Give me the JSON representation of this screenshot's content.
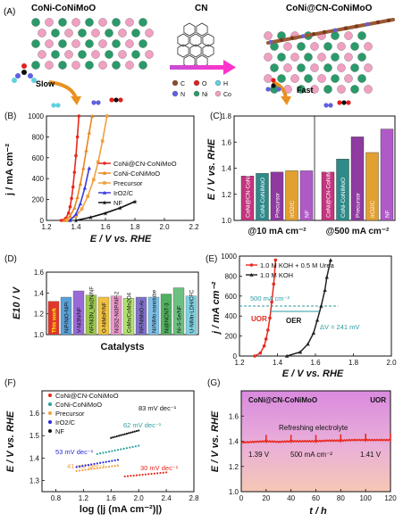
{
  "panel_a": {
    "label": "(A)",
    "left_title": "CoNi-CoNiMoO",
    "mid_title": "CN",
    "right_title": "CoNi@CN-CoNiMoO",
    "slow": "Slow",
    "fast": "Fast",
    "legend": [
      {
        "sym": "C",
        "color": "#8b4a2b"
      },
      {
        "sym": "O",
        "color": "#e02020"
      },
      {
        "sym": "H",
        "color": "#5fd0e0"
      },
      {
        "sym": "N",
        "color": "#6060e0"
      },
      {
        "sym": "Ni",
        "color": "#2a9a6a"
      },
      {
        "sym": "Co",
        "color": "#f0a0c0"
      }
    ]
  },
  "chart_data": [
    {
      "panel": "(B)",
      "type": "line",
      "xlabel": "E / V vs. RHE",
      "ylabel": "j / mA cm⁻²",
      "xlim": [
        1.2,
        2.2
      ],
      "ylim": [
        0,
        1000
      ],
      "xticks": [
        "1.2",
        "1.4",
        "1.6",
        "1.8",
        "2.0",
        "2.2"
      ],
      "yticks": [
        "0",
        "200",
        "400",
        "600",
        "800",
        "1000"
      ],
      "legend_position": "right",
      "series": [
        {
          "name": "CoNi@CN-CoNiMoO",
          "color": "#e8281e",
          "marker": "circle",
          "x": [
            1.3,
            1.33,
            1.35,
            1.36,
            1.37,
            1.38,
            1.39,
            1.4,
            1.41,
            1.42
          ],
          "y": [
            0,
            20,
            70,
            130,
            210,
            320,
            460,
            620,
            800,
            1000
          ]
        },
        {
          "name": "CoNi-CoNiMoO",
          "color": "#e8861e",
          "marker": "triangle",
          "x": [
            1.32,
            1.36,
            1.39,
            1.41,
            1.43,
            1.45,
            1.47,
            1.49,
            1.51
          ],
          "y": [
            0,
            40,
            120,
            220,
            350,
            500,
            670,
            840,
            1000
          ]
        },
        {
          "name": "Precursor",
          "color": "#f0a040",
          "marker": "square",
          "x": [
            1.34,
            1.4,
            1.44,
            1.48,
            1.52,
            1.55,
            1.58,
            1.61
          ],
          "y": [
            0,
            40,
            110,
            230,
            390,
            560,
            760,
            1000
          ]
        },
        {
          "name": "IrO2/C",
          "color": "#3a3adf",
          "marker": "triangle",
          "x": [
            1.36,
            1.4,
            1.43,
            1.46,
            1.49
          ],
          "y": [
            0,
            60,
            160,
            310,
            500
          ]
        },
        {
          "name": "NF",
          "color": "#111111",
          "marker": "star",
          "x": [
            1.4,
            1.5,
            1.6,
            1.7,
            1.8
          ],
          "y": [
            0,
            30,
            70,
            120,
            180
          ]
        }
      ]
    },
    {
      "panel": "(C)",
      "type": "bar",
      "xlabel": "",
      "ylabel": "E / V vs. RHE",
      "ylim": [
        1.0,
        1.8
      ],
      "yticks": [
        "1.0",
        "1.2",
        "1.4",
        "1.6",
        "1.8"
      ],
      "groups": [
        "@10 mA cm⁻²",
        "@500 mA cm⁻²"
      ],
      "categories": [
        "CoNi@CN-CoNiMoO",
        "CoNi-CoNiMoO",
        "Precursor",
        "IrO2/C",
        "NF"
      ],
      "colors": [
        "#c4357e",
        "#2f8a8a",
        "#8e3aa0",
        "#e2a030",
        "#b05ac8"
      ],
      "series": [
        {
          "name": "@10 mA cm⁻²",
          "values": [
            1.34,
            1.36,
            1.37,
            1.38,
            1.38
          ]
        },
        {
          "name": "@500 mA cm⁻²",
          "values": [
            1.37,
            1.47,
            1.64,
            1.52,
            1.7
          ]
        }
      ]
    },
    {
      "panel": "(D)",
      "type": "bar",
      "xlabel": "Catalysts",
      "ylabel": "E10 / V",
      "ylim": [
        1.0,
        1.6
      ],
      "yticks": [
        "1.0",
        "1.2",
        "1.4",
        "1.6"
      ],
      "categories": [
        "This work",
        "NiP/NiO-NiPi",
        "V-Ni3N/NF",
        "NF/Ni3N_Mo2N/NF",
        "O-NiMoP/NF",
        "Ni3S2-Ni3P/NF-2",
        "CoMn/CoMn2O4",
        "NF/NiMoO-Ar",
        "Ni/NiMo nanotube",
        "Ni@NCNT-3",
        "Ni-S-Se/NF",
        "U-NiMn-LDH/CFC"
      ],
      "values": [
        1.32,
        1.36,
        1.42,
        1.38,
        1.36,
        1.37,
        1.35,
        1.36,
        1.36,
        1.39,
        1.45,
        1.37
      ],
      "colors": [
        "#e0362c",
        "#5aa0d8",
        "#9a6ad8",
        "#9cc850",
        "#f0c040",
        "#e898c8",
        "#b0e070",
        "#8070c8",
        "#7ec0e8",
        "#50b060",
        "#6cc080",
        "#80d0e0"
      ]
    },
    {
      "panel": "(E)",
      "type": "line",
      "xlabel": "E / V vs. RHE",
      "ylabel": "j / mA cm⁻²",
      "xlim": [
        1.2,
        2.0
      ],
      "ylim": [
        0,
        1000
      ],
      "xticks": [
        "1.2",
        "1.4",
        "1.6",
        "1.8",
        "2.0"
      ],
      "yticks": [
        "0",
        "200",
        "400",
        "600",
        "800",
        "1000"
      ],
      "legend_position": "top-left",
      "series": [
        {
          "name": "1.0 M KOH + 0.5 M Urea",
          "color": "#e8281e",
          "marker": "circle",
          "x": [
            1.28,
            1.31,
            1.33,
            1.34,
            1.35,
            1.36,
            1.37,
            1.38,
            1.39
          ],
          "y": [
            0,
            30,
            100,
            170,
            260,
            380,
            540,
            720,
            960
          ]
        },
        {
          "name": "1.0 M KOH",
          "color": "#222222",
          "marker": "triangle",
          "x": [
            1.45,
            1.52,
            1.56,
            1.59,
            1.61,
            1.63,
            1.65,
            1.66,
            1.68
          ],
          "y": [
            0,
            40,
            120,
            230,
            360,
            500,
            660,
            790,
            960
          ]
        }
      ],
      "annotations": [
        "500 mA cm⁻²",
        "UOR",
        "OER",
        "ΔV = 241 mV"
      ]
    },
    {
      "panel": "(F)",
      "type": "scatter",
      "xlabel": "log (|j (mA cm⁻²)|)",
      "ylabel": "E / V vs. RHE",
      "xlim": [
        0.6,
        2.8
      ],
      "ylim": [
        1.25,
        1.7
      ],
      "xticks": [
        "0.8",
        "1.2",
        "1.6",
        "2.0",
        "2.4",
        "2.8"
      ],
      "yticks": [
        "1.3",
        "1.4",
        "1.5",
        "1.6"
      ],
      "legend_position": "top-left",
      "series": [
        {
          "name": "CoNi@CN-CoNiMoO",
          "color": "#e8281e",
          "slope": "30 mV dec⁻¹",
          "x": [
            1.8,
            2.4
          ],
          "y": [
            1.318,
            1.336
          ]
        },
        {
          "name": "CoNi-CoNiMoO",
          "color": "#2aa0a0",
          "slope": "62 mV dec⁻¹",
          "x": [
            1.4,
            2.0
          ],
          "y": [
            1.418,
            1.455
          ]
        },
        {
          "name": "Precursor",
          "color": "#f0a040",
          "slope": "41 mV dec⁻¹",
          "x": [
            1.1,
            1.7
          ],
          "y": [
            1.342,
            1.367
          ]
        },
        {
          "name": "IrO2/C",
          "color": "#2a2adf",
          "slope": "53 mV dec⁻¹",
          "x": [
            1.1,
            1.7
          ],
          "y": [
            1.36,
            1.392
          ]
        },
        {
          "name": "NF",
          "color": "#111111",
          "slope": "83 mV dec⁻¹",
          "x": [
            1.6,
            2.0
          ],
          "y": [
            1.49,
            1.523
          ]
        }
      ]
    },
    {
      "panel": "(G)",
      "type": "line",
      "xlabel": "t / h",
      "ylabel": "E / V vs. RHE",
      "xlim": [
        0,
        120
      ],
      "ylim": [
        1.0,
        1.8
      ],
      "xticks": [
        "0",
        "20",
        "40",
        "60",
        "80",
        "100",
        "120"
      ],
      "yticks": [
        "1.0",
        "1.2",
        "1.4",
        "1.6"
      ],
      "title": "CoNi@CN-CoNiMoO",
      "corner_label": "UOR",
      "annotations": [
        "Refreshing electrolyte",
        "1.39 V",
        "500 mA cm⁻²",
        "1.41 V"
      ],
      "series": [
        {
          "name": "",
          "color": "#e8281e",
          "x": [
            0,
            10,
            20,
            30,
            40,
            50,
            60,
            70,
            80,
            90,
            100,
            110,
            120
          ],
          "y": [
            1.39,
            1.395,
            1.4,
            1.395,
            1.4,
            1.4,
            1.4,
            1.405,
            1.405,
            1.41,
            1.41,
            1.41,
            1.41
          ]
        }
      ]
    }
  ]
}
